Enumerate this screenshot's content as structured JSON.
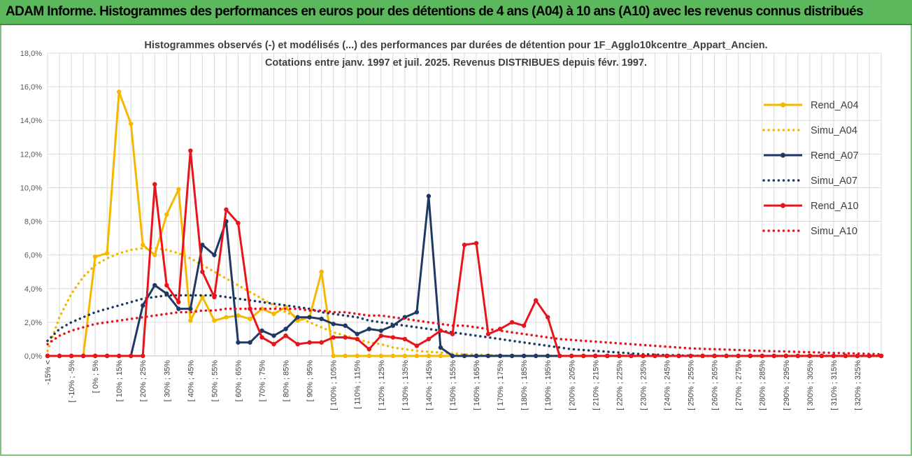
{
  "banner": {
    "title": "ADAM Informe. Histogrammes des performances en euros pour des détentions de 4 ans (A04) à 10 ans (A10) avec les revenus connus distribués"
  },
  "colors": {
    "banner_bg": "#5cb85c",
    "A04": "#f5b800",
    "A07": "#1f3864",
    "A10": "#e8141b",
    "grid": "#d9d9d9"
  },
  "chart_data": {
    "type": "line",
    "title": "Histogrammes observés (-) et modélisés (...) des performances par durées de détention pour 1F_Agglo10kcentre_Appart_Ancien.",
    "subtitle": "Cotations entre janv. 1997 et juil. 2025. Revenus DISTRIBUES depuis févr. 1997.",
    "xlabel": "",
    "ylabel": "",
    "ylim": [
      0,
      18
    ],
    "yticks": [
      "0,0%",
      "2,0%",
      "4,0%",
      "6,0%",
      "8,0%",
      "10,0%",
      "12,0%",
      "14,0%",
      "16,0%",
      "18,0%"
    ],
    "grid": true,
    "legend_position": "right",
    "x_labels": [
      "-15% <",
      "[ -10% ; -5%",
      "[ 0% ; 5%",
      "[ 10% ; 15%",
      "[ 20% ; 25%",
      "[ 30% ; 35%",
      "[ 40% ; 45%",
      "[ 50% ; 55%",
      "[ 60% ; 65%",
      "[ 70% ; 75%",
      "[ 80% ; 85%",
      "[ 90% ; 95%",
      "[ 100% ; 105%",
      "[ 110% ; 115%",
      "[ 120% ; 125%",
      "[ 130% ; 135%",
      "[ 140% ; 145%",
      "[ 150% ; 155%",
      "[ 160% ; 165%",
      "[ 170% ; 175%",
      "[ 180% ; 185%",
      "[ 190% ; 195%",
      "[ 200% ; 205%",
      "[ 210% ; 215%",
      "[ 220% ; 225%",
      "[ 230% ; 235%",
      "[ 240% ; 245%",
      "[ 250% ; 255%",
      "[ 260% ; 265%",
      "[ 270% ; 275%",
      "[ 280% ; 285%",
      "[ 290% ; 295%",
      "[ 300% ; 305%",
      "[ 310% ; 315%",
      "[ 320% ; 325%"
    ],
    "series": [
      {
        "name": "Rend_A04",
        "style": "solid",
        "color": "#f5b800",
        "values": [
          0,
          0,
          0,
          0,
          5.9,
          6.1,
          15.7,
          13.8,
          6.6,
          6.0,
          8.4,
          9.9,
          2.1,
          3.5,
          2.1,
          2.3,
          2.4,
          2.2,
          2.8,
          2.5,
          2.9,
          2.1,
          2.3,
          5.0,
          0,
          0,
          0,
          0,
          0,
          0,
          0,
          0,
          0,
          0,
          0,
          0,
          0,
          0,
          0,
          0,
          0,
          0,
          0,
          0,
          0,
          0,
          0,
          0,
          0,
          0,
          0,
          0,
          0,
          0,
          0,
          0,
          0,
          0,
          0,
          0,
          0,
          0,
          0,
          0,
          0,
          0,
          0,
          0,
          0,
          0,
          0
        ]
      },
      {
        "name": "Simu_A04",
        "style": "dotted",
        "color": "#f5b800",
        "values": [
          0.3,
          2.3,
          3.7,
          4.7,
          5.4,
          5.8,
          6.1,
          6.3,
          6.4,
          6.4,
          6.3,
          6.1,
          5.8,
          5.4,
          5.0,
          4.6,
          4.2,
          3.8,
          3.4,
          3.0,
          2.6,
          2.3,
          2.0,
          1.7,
          1.4,
          1.2,
          1.0,
          0.8,
          0.7,
          0.5,
          0.4,
          0.3,
          0.25,
          0.2,
          0.15,
          0.1,
          0.08,
          0.05,
          0.03,
          0,
          0,
          0,
          0,
          0,
          0,
          0,
          0,
          0,
          0,
          0,
          0,
          0,
          0,
          0,
          0,
          0,
          0,
          0,
          0,
          0,
          0,
          0,
          0,
          0,
          0,
          0,
          0,
          0,
          0,
          0,
          0
        ]
      },
      {
        "name": "Rend_A07",
        "style": "solid",
        "color": "#1f3864",
        "values": [
          0,
          0,
          0,
          0,
          0,
          0,
          0,
          0,
          3.0,
          4.2,
          3.7,
          2.8,
          2.8,
          6.6,
          6.0,
          8.0,
          0.8,
          0.8,
          1.5,
          1.2,
          1.6,
          2.3,
          2.3,
          2.2,
          1.9,
          1.8,
          1.3,
          1.6,
          1.5,
          1.8,
          2.3,
          2.6,
          9.5,
          0.5,
          0,
          0,
          0,
          0,
          0,
          0,
          0,
          0,
          0,
          0,
          0,
          0,
          0,
          0,
          0,
          0,
          0,
          0,
          0,
          0,
          0,
          0,
          0,
          0,
          0,
          0,
          0,
          0,
          0,
          0,
          0,
          0,
          0,
          0,
          0,
          0,
          0
        ]
      },
      {
        "name": "Simu_A07",
        "style": "dotted",
        "color": "#1f3864",
        "values": [
          0.9,
          1.6,
          2.0,
          2.3,
          2.6,
          2.8,
          3.0,
          3.2,
          3.4,
          3.5,
          3.6,
          3.6,
          3.6,
          3.6,
          3.6,
          3.5,
          3.4,
          3.3,
          3.2,
          3.1,
          3.0,
          2.9,
          2.8,
          2.6,
          2.5,
          2.4,
          2.3,
          2.1,
          2.0,
          1.9,
          1.8,
          1.7,
          1.6,
          1.5,
          1.4,
          1.3,
          1.2,
          1.1,
          1.0,
          0.9,
          0.8,
          0.7,
          0.6,
          0.5,
          0.4,
          0.35,
          0.3,
          0.25,
          0.2,
          0.15,
          0.1,
          0.08,
          0.05,
          0.03,
          0.02,
          0,
          0,
          0,
          0,
          0,
          0,
          0,
          0,
          0,
          0,
          0,
          0,
          0,
          0,
          0,
          0
        ]
      },
      {
        "name": "Rend_A10",
        "style": "solid",
        "color": "#e8141b",
        "values": [
          0,
          0,
          0,
          0,
          0,
          0,
          0,
          0,
          0,
          10.2,
          4.2,
          3.2,
          12.2,
          5.0,
          3.5,
          8.7,
          7.9,
          2.8,
          1.1,
          0.7,
          1.2,
          0.7,
          0.8,
          0.8,
          1.1,
          1.1,
          1.0,
          0.4,
          1.2,
          1.1,
          1.0,
          0.6,
          1.0,
          1.5,
          1.3,
          6.6,
          6.7,
          1.3,
          1.6,
          2.0,
          1.8,
          3.3,
          2.3,
          0,
          0,
          0,
          0,
          0,
          0,
          0,
          0,
          0,
          0,
          0,
          0,
          0,
          0,
          0,
          0,
          0,
          0,
          0,
          0,
          0,
          0,
          0,
          0,
          0,
          0,
          0,
          0
        ]
      },
      {
        "name": "Simu_A10",
        "style": "dotted",
        "color": "#e8141b",
        "values": [
          0.7,
          1.2,
          1.5,
          1.7,
          1.9,
          2.0,
          2.1,
          2.2,
          2.3,
          2.4,
          2.5,
          2.6,
          2.6,
          2.7,
          2.7,
          2.8,
          2.8,
          2.8,
          2.8,
          2.8,
          2.8,
          2.8,
          2.7,
          2.7,
          2.6,
          2.6,
          2.5,
          2.4,
          2.4,
          2.3,
          2.2,
          2.1,
          2.0,
          1.9,
          1.8,
          1.8,
          1.7,
          1.6,
          1.5,
          1.4,
          1.3,
          1.2,
          1.1,
          1.0,
          0.95,
          0.9,
          0.85,
          0.8,
          0.75,
          0.7,
          0.65,
          0.6,
          0.55,
          0.5,
          0.45,
          0.42,
          0.4,
          0.38,
          0.35,
          0.32,
          0.3,
          0.28,
          0.26,
          0.24,
          0.22,
          0.2,
          0.18,
          0.16,
          0.14,
          0.12,
          0.1
        ]
      }
    ]
  }
}
